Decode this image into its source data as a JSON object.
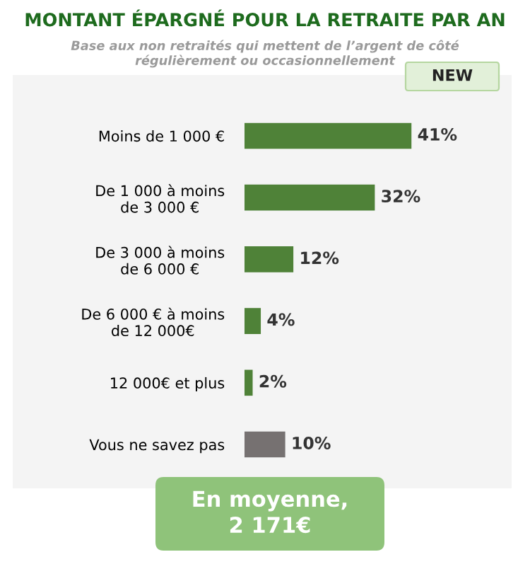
{
  "chart_data": {
    "type": "bar",
    "orientation": "horizontal",
    "title": "MONTANT ÉPARGNÉ POUR LA RETRAITE PAR AN",
    "subtitle": "Base aux non retraités qui mettent de l’argent de côté\nrégulièrement ou occasionnellement",
    "categories": [
      "Moins de 1 000 €",
      "De 1 000 à moins\nde 3 000 €",
      "De 3 000 à moins\nde 6 000 €",
      "De 6 000 € à moins\nde 12 000€",
      "12 000€ et plus",
      "Vous ne savez pas"
    ],
    "values": [
      41,
      32,
      12,
      4,
      2,
      10
    ],
    "value_labels": [
      "41%",
      "32%",
      "12%",
      "4%",
      "2%",
      "10%"
    ],
    "colors": [
      "#4f8238",
      "#4f8238",
      "#4f8238",
      "#4f8238",
      "#4f8238",
      "#767171"
    ],
    "annotations": [
      "NEW",
      "En moyenne,\n2 171€"
    ]
  }
}
